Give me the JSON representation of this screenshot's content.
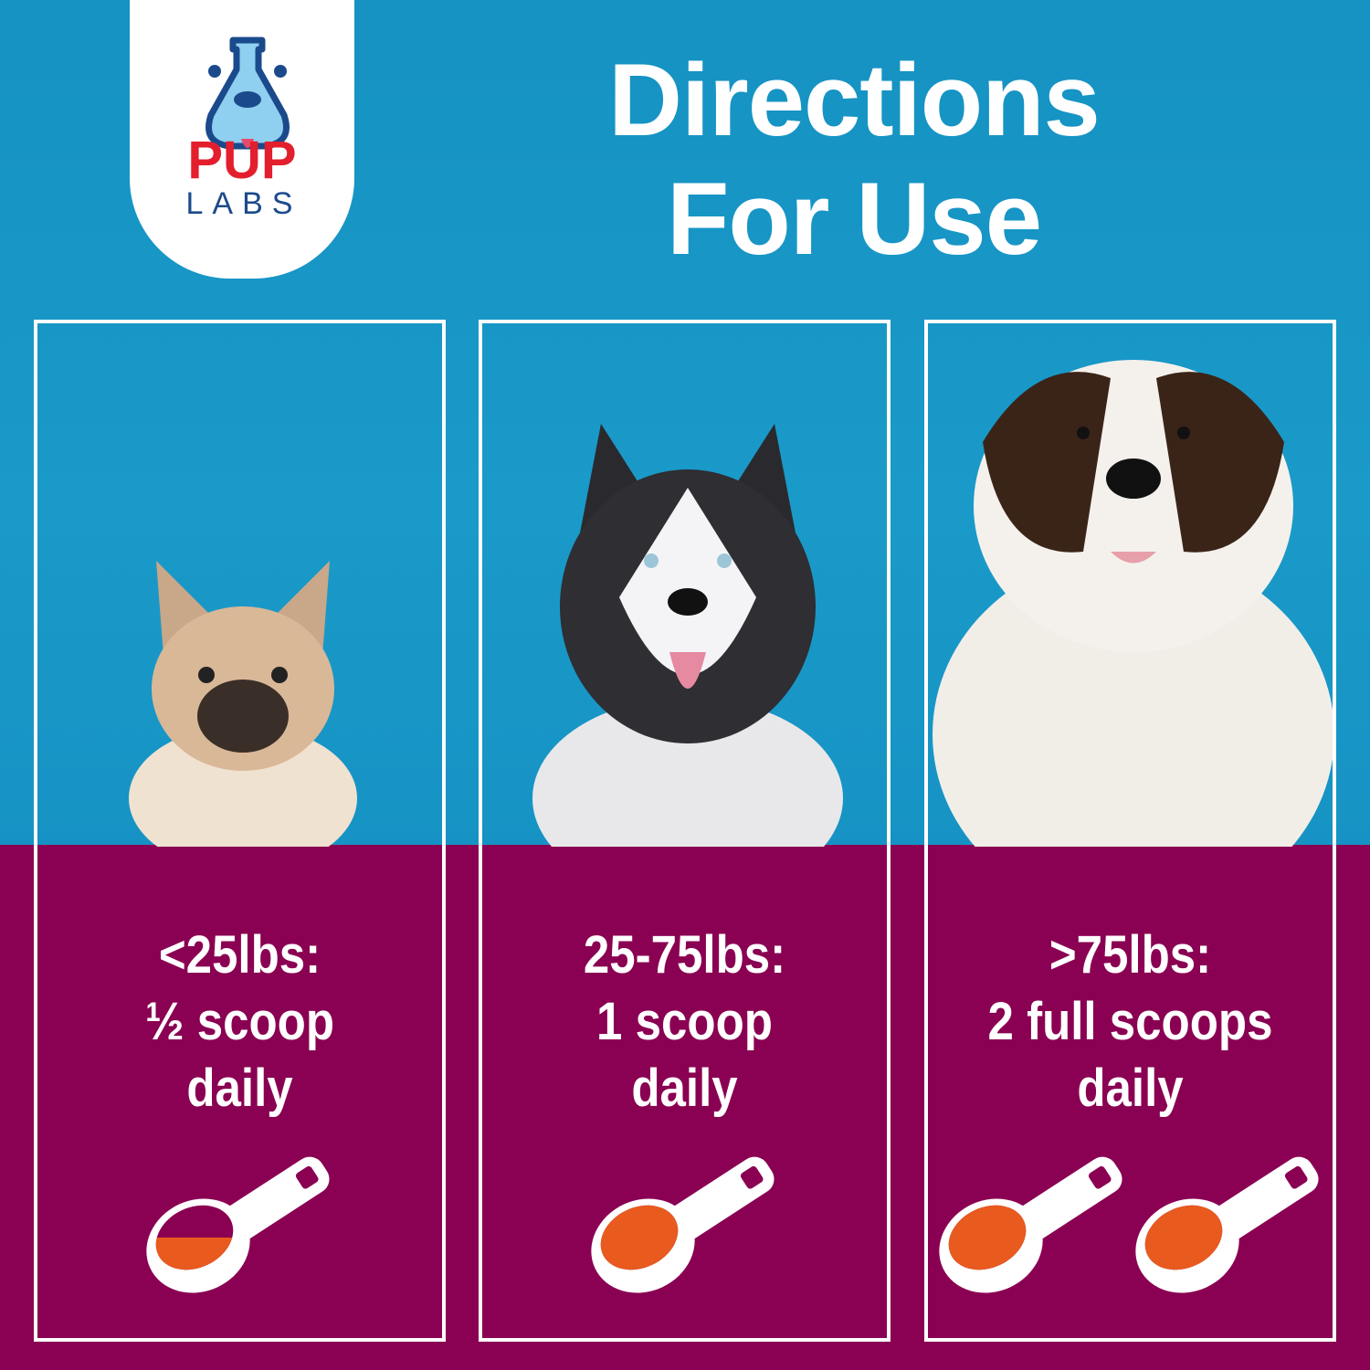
{
  "brand": {
    "logo_word1": "PUP",
    "logo_word2": "LABS"
  },
  "header": {
    "title_line1": "Directions",
    "title_line2": "For Use"
  },
  "panels": [
    {
      "weight": "<25lbs:",
      "amount": "½ scoop",
      "frequency": "daily",
      "dog": "french bulldog",
      "scoops": 1,
      "fill": 0.5
    },
    {
      "weight": "25-75lbs:",
      "amount": "1 scoop",
      "frequency": "daily",
      "dog": "siberian husky",
      "scoops": 1,
      "fill": 1
    },
    {
      "weight": ">75lbs:",
      "amount": "2 full scoops",
      "frequency": "daily",
      "dog": "saint bernard",
      "scoops": 2,
      "fill": 1
    }
  ],
  "colors": {
    "blue": "#1693c4",
    "purple": "#8a0052",
    "orange": "#e85a1e",
    "logo_red": "#e31e2d",
    "logo_navy": "#1b4a8c"
  }
}
